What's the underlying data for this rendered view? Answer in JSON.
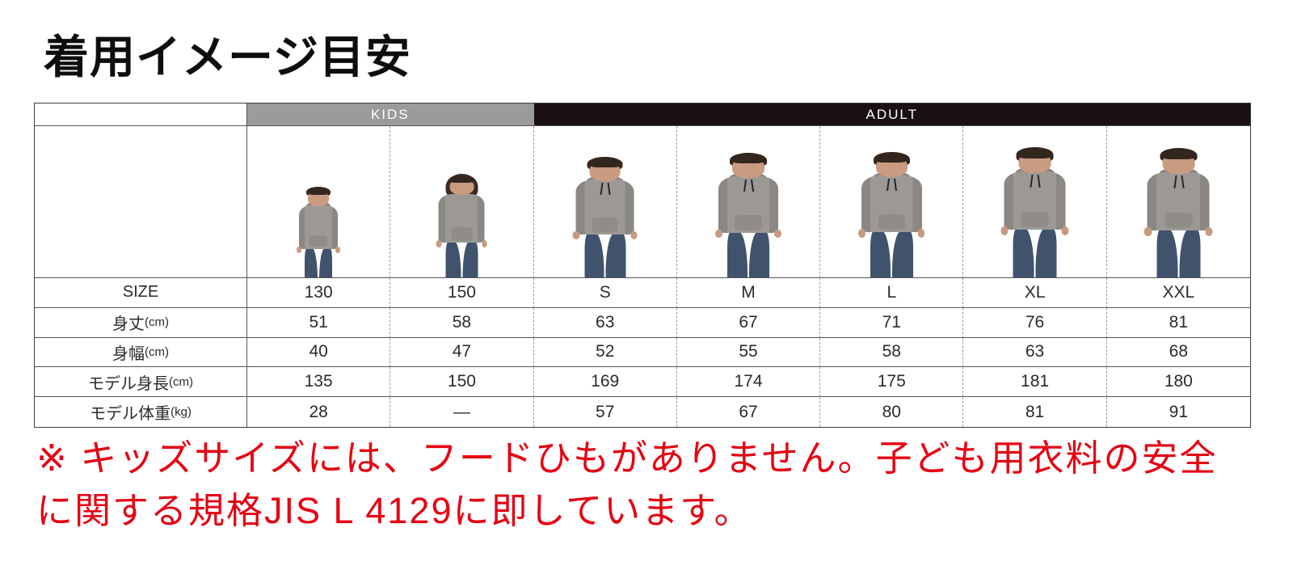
{
  "title": "着用イメージ目安",
  "table": {
    "groups": [
      {
        "id": "kids",
        "label": "KIDS",
        "span": 2
      },
      {
        "id": "adult",
        "label": "ADULT",
        "span": 5
      }
    ],
    "rows": [
      {
        "id": "size",
        "label": "SIZE",
        "unit": "",
        "values": [
          "130",
          "150",
          "S",
          "M",
          "L",
          "XL",
          "XXL"
        ]
      },
      {
        "id": "body_length",
        "label": "身丈",
        "unit": "(cm)",
        "values": [
          "51",
          "58",
          "63",
          "67",
          "71",
          "76",
          "81"
        ]
      },
      {
        "id": "body_width",
        "label": "身幅",
        "unit": "(cm)",
        "values": [
          "40",
          "47",
          "52",
          "55",
          "58",
          "63",
          "68"
        ]
      },
      {
        "id": "model_height",
        "label": "モデル身長",
        "unit": "(cm)",
        "values": [
          "135",
          "150",
          "169",
          "174",
          "175",
          "181",
          "180"
        ]
      },
      {
        "id": "model_weight",
        "label": "モデル体重",
        "unit": "(kg)",
        "values": [
          "28",
          "—",
          "57",
          "67",
          "80",
          "81",
          "91"
        ]
      }
    ],
    "models": [
      {
        "size": "130",
        "height_cm": 135,
        "type": "boy",
        "drawstring": false
      },
      {
        "size": "150",
        "height_cm": 150,
        "type": "girl",
        "drawstring": false
      },
      {
        "size": "S",
        "height_cm": 169,
        "type": "man",
        "drawstring": true
      },
      {
        "size": "M",
        "height_cm": 174,
        "type": "man",
        "drawstring": true
      },
      {
        "size": "L",
        "height_cm": 175,
        "type": "man",
        "drawstring": true
      },
      {
        "size": "XL",
        "height_cm": 181,
        "type": "man",
        "drawstring": true
      },
      {
        "size": "XXL",
        "height_cm": 180,
        "type": "man",
        "drawstring": true
      }
    ]
  },
  "note": {
    "text": "※ キッズサイズには、フードひもがありません。子ども用衣料の安全\nに関する規格JIS L 4129に即しています。",
    "color": "#e60012"
  },
  "colors": {
    "kids_header_bg": "#9b9b9b",
    "adult_header_bg": "#191013",
    "hoodie_gray": "#9c9995",
    "note_red": "#e60012"
  }
}
